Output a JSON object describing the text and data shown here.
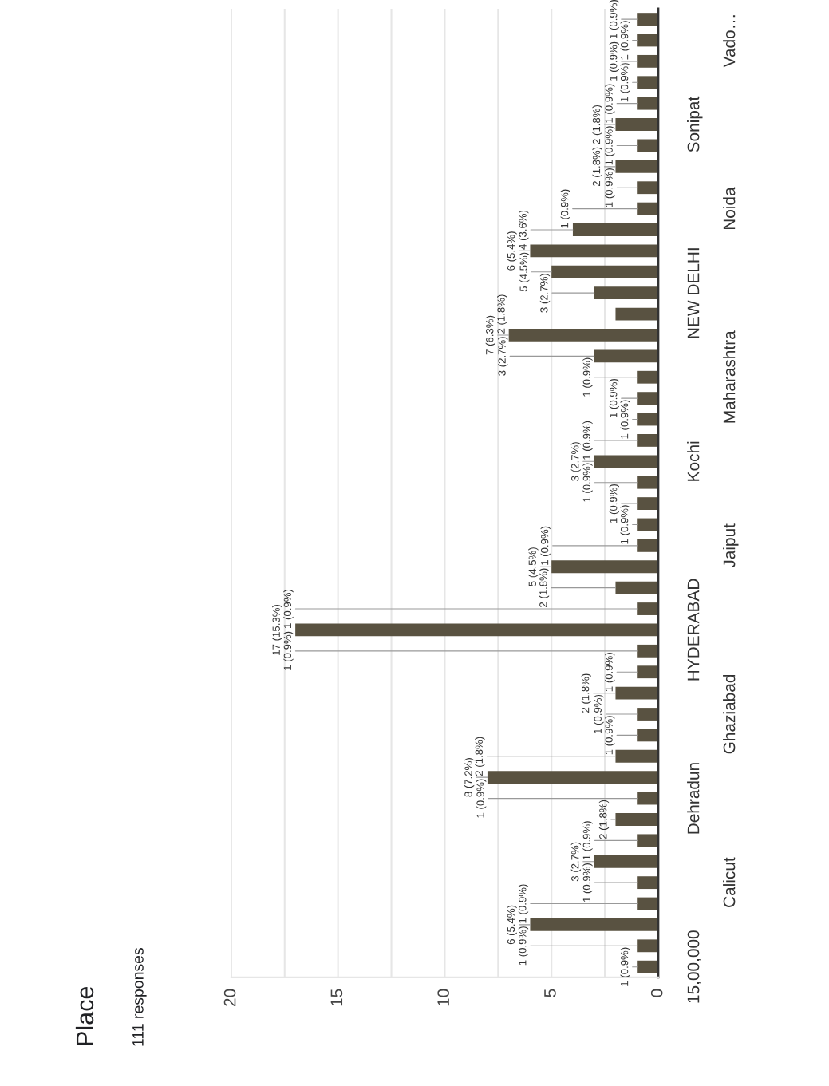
{
  "chart_data": {
    "type": "bar",
    "orientation": "horizontal",
    "title": "Place",
    "subtitle": "111 responses",
    "categories": [
      null,
      "Vado…",
      null,
      null,
      null,
      "Sonipat",
      null,
      null,
      null,
      "Noida",
      null,
      null,
      null,
      "NEW DELHI",
      null,
      null,
      null,
      "Maharashtra",
      null,
      null,
      null,
      "Kochi",
      null,
      null,
      null,
      "Jaiput",
      null,
      null,
      null,
      "HYDERABAD",
      null,
      null,
      null,
      "Ghaziabad",
      null,
      null,
      null,
      "Dehradun",
      null,
      null,
      null,
      "Calicut",
      null,
      null,
      null,
      "15,00,000"
    ],
    "values": [
      1,
      1,
      1,
      1,
      1,
      2,
      1,
      2,
      1,
      1,
      4,
      6,
      5,
      3,
      2,
      7,
      3,
      1,
      1,
      1,
      1,
      3,
      1,
      1,
      1,
      1,
      5,
      2,
      1,
      17,
      1,
      1,
      2,
      1,
      1,
      2,
      8,
      1,
      2,
      1,
      3,
      1,
      1,
      6,
      1,
      1
    ],
    "value_labels": [
      "1 (0.9%)",
      "1 (0.9%)",
      "1 (0.9%)",
      "1 (0.9%)",
      "1 (0.9%)",
      "2 (1.8%)",
      "1 (0.9%)",
      "2 (1.8%)",
      "1 (0.9%)",
      "1 (0.9%)",
      "4 (3.6%)",
      "6 (5.4%)",
      "5 (4.5%)",
      "3 (2.7%)",
      "2 (1.8%)",
      "7 (6.3%)",
      "3 (2.7%)",
      "1 (0.9%)",
      "1 (0.9%)",
      "1 (0.9%)",
      "1 (0.9%)",
      "3 (2.7%)",
      "1 (0.9%)",
      "1 (0.9%)",
      "1 (0.9%)",
      "1 (0.9%)",
      "5 (4.5%)",
      "2 (1.8%)",
      "1 (0.9%)",
      "17 (15.3%)",
      "1 (0.9%)",
      "1 (0.9%)",
      "2 (1.8%)",
      "1 (0.9%)",
      "1 (0.9%)",
      "2 (1.8%)",
      "8 (7.2%)",
      "1 (0.9%)",
      "2 (1.8%)",
      "1 (0.9%)",
      "3 (2.7%)",
      "1 (0.9%)",
      "1 (0.9%)",
      "6 (5.4%)",
      "1 (0.9%)",
      "1 (0.9%)"
    ],
    "color": "#595241",
    "xlim": [
      20,
      0
    ],
    "xticks": [
      0,
      {
        "value": 2.5,
        "label": null
      },
      5,
      {
        "value": 7.5,
        "label": null
      },
      10,
      {
        "value": 12.5,
        "label": null
      },
      15,
      {
        "value": 17.5,
        "label": null
      },
      20
    ],
    "grid": "x"
  }
}
